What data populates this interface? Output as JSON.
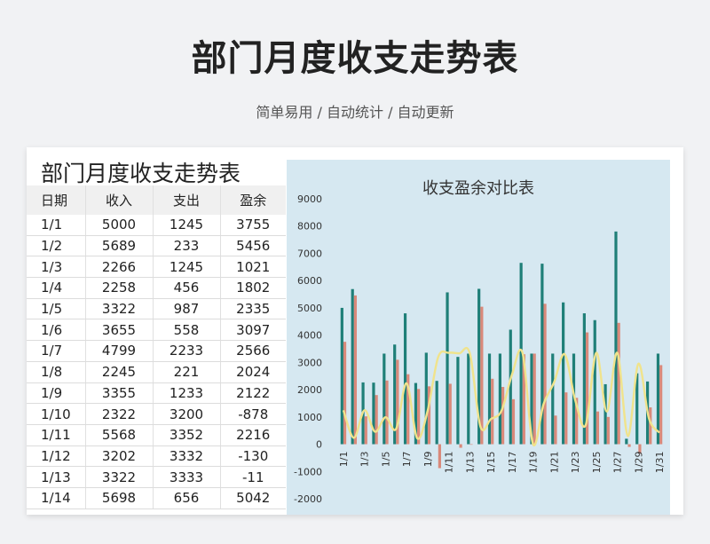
{
  "header": {
    "title": "部门月度收支走势表",
    "subtitle": "简单易用 / 自动统计 / 自动更新"
  },
  "sheet": {
    "title": "部门月度收支走势表",
    "columns": [
      "日期",
      "收入",
      "支出",
      "盈余"
    ],
    "rows": [
      [
        "1/1",
        "5000",
        "1245",
        "3755"
      ],
      [
        "1/2",
        "5689",
        "233",
        "5456"
      ],
      [
        "1/3",
        "2266",
        "1245",
        "1021"
      ],
      [
        "1/4",
        "2258",
        "456",
        "1802"
      ],
      [
        "1/5",
        "3322",
        "987",
        "2335"
      ],
      [
        "1/6",
        "3655",
        "558",
        "3097"
      ],
      [
        "1/7",
        "4799",
        "2233",
        "2566"
      ],
      [
        "1/8",
        "2245",
        "221",
        "2024"
      ],
      [
        "1/9",
        "3355",
        "1233",
        "2122"
      ],
      [
        "1/10",
        "2322",
        "3200",
        "-878"
      ],
      [
        "1/11",
        "5568",
        "3352",
        "2216"
      ],
      [
        "1/12",
        "3202",
        "3332",
        "-130"
      ],
      [
        "1/13",
        "3322",
        "3333",
        "-11"
      ],
      [
        "1/14",
        "5698",
        "656",
        "5042"
      ]
    ]
  },
  "chart_data": {
    "type": "bar",
    "title": "收支盈余对比表",
    "ylim": [
      -2000,
      9000
    ],
    "yticks": [
      -2000,
      -1000,
      0,
      1000,
      2000,
      3000,
      4000,
      5000,
      6000,
      7000,
      8000,
      9000
    ],
    "xtick_labels": [
      "1/1",
      "1/3",
      "1/5",
      "1/7",
      "1/9",
      "1/11",
      "1/13",
      "1/15",
      "1/17",
      "1/19",
      "1/21",
      "1/23",
      "1/25",
      "1/27",
      "1/29",
      "1/31"
    ],
    "categories": [
      "1/1",
      "1/2",
      "1/3",
      "1/4",
      "1/5",
      "1/6",
      "1/7",
      "1/8",
      "1/9",
      "1/10",
      "1/11",
      "1/12",
      "1/13",
      "1/14",
      "1/15",
      "1/16",
      "1/17",
      "1/18",
      "1/19",
      "1/20",
      "1/21",
      "1/22",
      "1/23",
      "1/24",
      "1/25",
      "1/26",
      "1/27",
      "1/28",
      "1/29",
      "1/30",
      "1/31"
    ],
    "series": [
      {
        "kind": "bar",
        "color": "#1f7f78",
        "values": [
          5000,
          5689,
          2266,
          2258,
          3322,
          3655,
          4799,
          2245,
          3355,
          2322,
          5568,
          3202,
          3322,
          5698,
          3322,
          3322,
          4200,
          6650,
          3322,
          6620,
          3322,
          5200,
          3322,
          4800,
          4550,
          2200,
          7800,
          200,
          2600,
          2300,
          3322
        ]
      },
      {
        "kind": "bar",
        "color": "#d9897a",
        "values": [
          3755,
          5456,
          1021,
          1802,
          2335,
          3097,
          2566,
          2024,
          2122,
          -878,
          2216,
          -130,
          -11,
          5042,
          2400,
          2100,
          1650,
          3300,
          3322,
          5150,
          1050,
          1900,
          1700,
          4100,
          1200,
          1000,
          4450,
          -100,
          -350,
          1350,
          2900
        ]
      },
      {
        "kind": "line",
        "color": "#f0e38c",
        "values": [
          1245,
          233,
          1245,
          456,
          987,
          558,
          2233,
          221,
          1233,
          3200,
          3352,
          3332,
          3333,
          656,
          922,
          1222,
          2550,
          3350,
          0,
          1470,
          2272,
          3300,
          1622,
          700,
          3350,
          1200,
          3350,
          300,
          2950,
          950,
          422
        ]
      }
    ]
  }
}
